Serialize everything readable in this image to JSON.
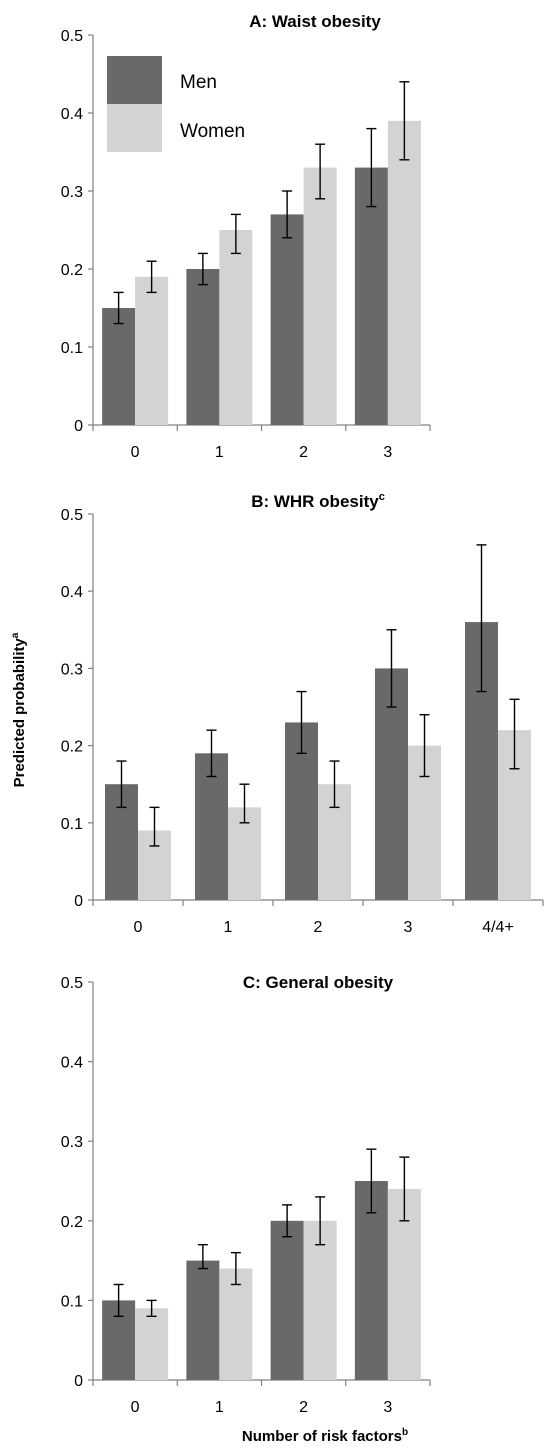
{
  "figure": {
    "ylabel": "Predicted probability",
    "ylabel_sup": "a",
    "xlabel": "Number of risk factors",
    "xlabel_sup": "b"
  },
  "legend": {
    "placement": "top-left of panel A",
    "entries": [
      {
        "name": "Men",
        "color": "#696969"
      },
      {
        "name": "Women",
        "color": "#d3d3d3"
      }
    ]
  },
  "chart_data": [
    {
      "type": "bar",
      "title": "A: Waist obesity",
      "title_sup": "",
      "categories": [
        "0",
        "1",
        "2",
        "3"
      ],
      "ylim": [
        0,
        0.5
      ],
      "yticks": [
        0,
        0.1,
        0.2,
        0.3,
        0.4,
        0.5
      ],
      "grid": false,
      "series": [
        {
          "name": "Men",
          "color": "#696969",
          "values": [
            0.15,
            0.2,
            0.27,
            0.33
          ],
          "err_low": [
            0.13,
            0.18,
            0.24,
            0.28
          ],
          "err_high": [
            0.17,
            0.22,
            0.3,
            0.38
          ]
        },
        {
          "name": "Women",
          "color": "#d3d3d3",
          "values": [
            0.19,
            0.25,
            0.33,
            0.39
          ],
          "err_low": [
            0.17,
            0.22,
            0.29,
            0.34
          ],
          "err_high": [
            0.21,
            0.27,
            0.36,
            0.44
          ]
        }
      ]
    },
    {
      "type": "bar",
      "title": "B: WHR obesity",
      "title_sup": "c",
      "categories": [
        "0",
        "1",
        "2",
        "3",
        "4/4+"
      ],
      "ylim": [
        0,
        0.5
      ],
      "yticks": [
        0,
        0.1,
        0.2,
        0.3,
        0.4,
        0.5
      ],
      "grid": false,
      "series": [
        {
          "name": "Men",
          "color": "#696969",
          "values": [
            0.15,
            0.19,
            0.23,
            0.3,
            0.36
          ],
          "err_low": [
            0.12,
            0.16,
            0.19,
            0.25,
            0.27
          ],
          "err_high": [
            0.18,
            0.22,
            0.27,
            0.35,
            0.46
          ]
        },
        {
          "name": "Women",
          "color": "#d3d3d3",
          "values": [
            0.09,
            0.12,
            0.15,
            0.2,
            0.22
          ],
          "err_low": [
            0.07,
            0.1,
            0.12,
            0.16,
            0.17
          ],
          "err_high": [
            0.12,
            0.15,
            0.18,
            0.24,
            0.26
          ]
        }
      ]
    },
    {
      "type": "bar",
      "title": "C: General obesity",
      "title_sup": "",
      "categories": [
        "0",
        "1",
        "2",
        "3"
      ],
      "ylim": [
        0,
        0.5
      ],
      "yticks": [
        0,
        0.1,
        0.2,
        0.3,
        0.4,
        0.5
      ],
      "grid": false,
      "series": [
        {
          "name": "Men",
          "color": "#696969",
          "values": [
            0.1,
            0.15,
            0.2,
            0.25
          ],
          "err_low": [
            0.08,
            0.14,
            0.18,
            0.21
          ],
          "err_high": [
            0.12,
            0.17,
            0.22,
            0.29
          ]
        },
        {
          "name": "Women",
          "color": "#d3d3d3",
          "values": [
            0.09,
            0.14,
            0.2,
            0.24
          ],
          "err_low": [
            0.08,
            0.12,
            0.17,
            0.2
          ],
          "err_high": [
            0.1,
            0.16,
            0.23,
            0.28
          ]
        }
      ]
    }
  ]
}
